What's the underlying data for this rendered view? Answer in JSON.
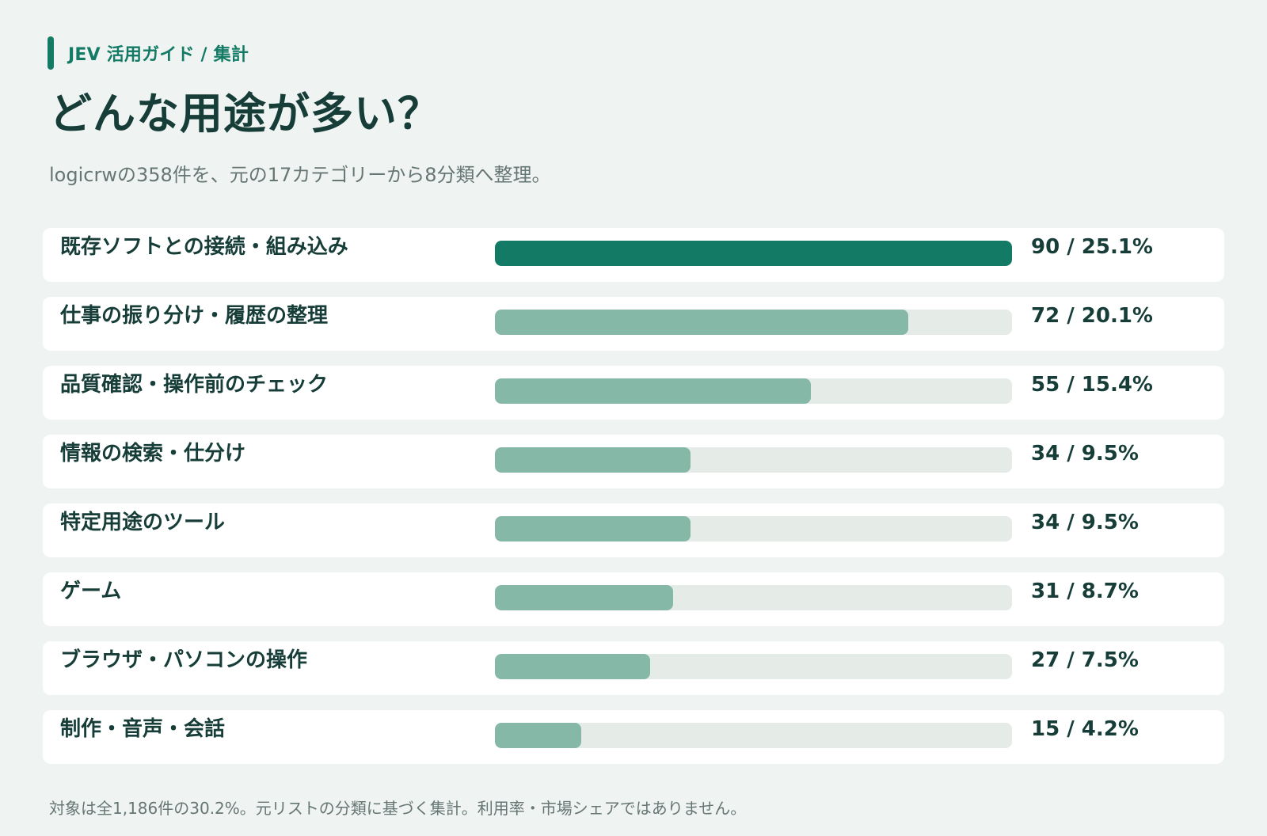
{
  "breadcrumb": "JEV 活用ガイド / 集計",
  "chart_data": {
    "type": "bar",
    "orientation": "horizontal",
    "title": "どんな用途が多い？",
    "subtitle": "logicrwの358件を、元の17カテゴリーから8分類へ整理。",
    "xlim": [
      0,
      90
    ],
    "categories": [
      "既存ソフトとの接続・組み込み",
      "仕事の振り分け・履歴の整理",
      "品質確認・操作前のチェック",
      "情報の検索・仕分け",
      "特定用途のツール",
      "ゲーム",
      "ブラウザ・パソコンの操作",
      "制作・音声・会話"
    ],
    "values": [
      90,
      72,
      55,
      34,
      34,
      31,
      27,
      15
    ],
    "labels": [
      "90 / 25.1%",
      "72 / 20.1%",
      "55 / 15.4%",
      "34 / 9.5%",
      "34 / 9.5%",
      "31 / 8.7%",
      "27 / 7.5%",
      "15 / 4.2%"
    ]
  },
  "footnote": "対象は全1,186件の30.2%。元リストの分類に基づく集計。利用率・市場シェアではありません。",
  "colors": {
    "accent": "#137b65",
    "bar_secondary": "#85b8a6",
    "track": "#e5ece8",
    "background": "#eff3f2",
    "text": "#163d37"
  }
}
